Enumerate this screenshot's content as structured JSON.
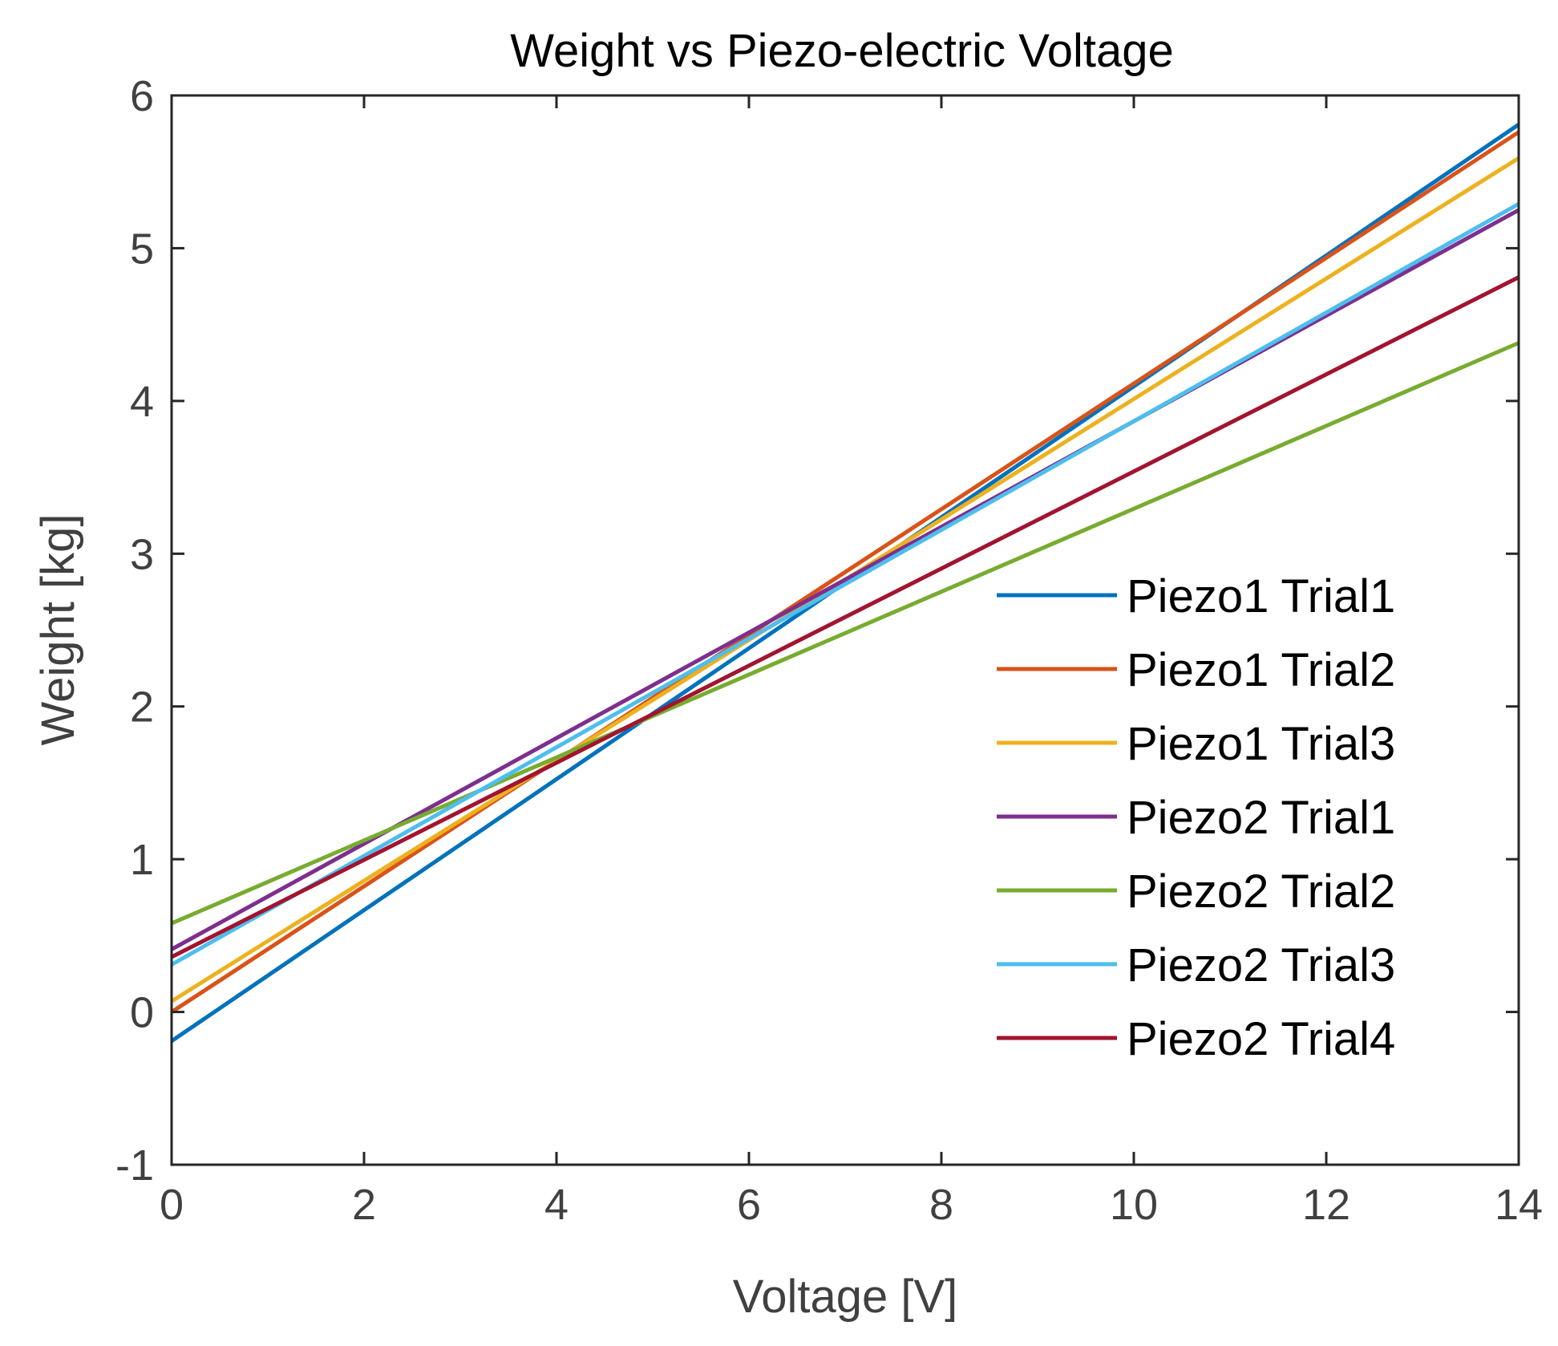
{
  "chart_data": {
    "type": "line",
    "title": "Weight vs Piezo-electric Voltage",
    "xlabel": "Voltage [V]",
    "ylabel": "Weight [kg]",
    "xlim": [
      0,
      14
    ],
    "ylim": [
      -1,
      6
    ],
    "xticks": [
      "0",
      "2",
      "4",
      "6",
      "8",
      "10",
      "12",
      "14"
    ],
    "yticks": [
      "-1",
      "0",
      "1",
      "2",
      "3",
      "4",
      "5",
      "6"
    ],
    "grid": false,
    "legend_position": "right",
    "series": [
      {
        "name": "Piezo1 Trial1",
        "color": "#0072bd",
        "x": [
          0,
          14
        ],
        "y": [
          -0.19,
          5.81
        ]
      },
      {
        "name": "Piezo1 Trial2",
        "color": "#d95319",
        "x": [
          0,
          14
        ],
        "y": [
          0.0,
          5.76
        ]
      },
      {
        "name": "Piezo1 Trial3",
        "color": "#edb120",
        "x": [
          0,
          14
        ],
        "y": [
          0.07,
          5.59
        ]
      },
      {
        "name": "Piezo2 Trial1",
        "color": "#7e2f8e",
        "x": [
          0,
          14
        ],
        "y": [
          0.41,
          5.25
        ]
      },
      {
        "name": "Piezo2 Trial2",
        "color": "#77ac30",
        "x": [
          0,
          14
        ],
        "y": [
          0.58,
          4.38
        ]
      },
      {
        "name": "Piezo2 Trial3",
        "color": "#4dbeee",
        "x": [
          0,
          14
        ],
        "y": [
          0.31,
          5.29
        ]
      },
      {
        "name": "Piezo2 Trial4",
        "color": "#a2142f",
        "x": [
          0,
          14
        ],
        "y": [
          0.36,
          4.81
        ]
      }
    ]
  }
}
